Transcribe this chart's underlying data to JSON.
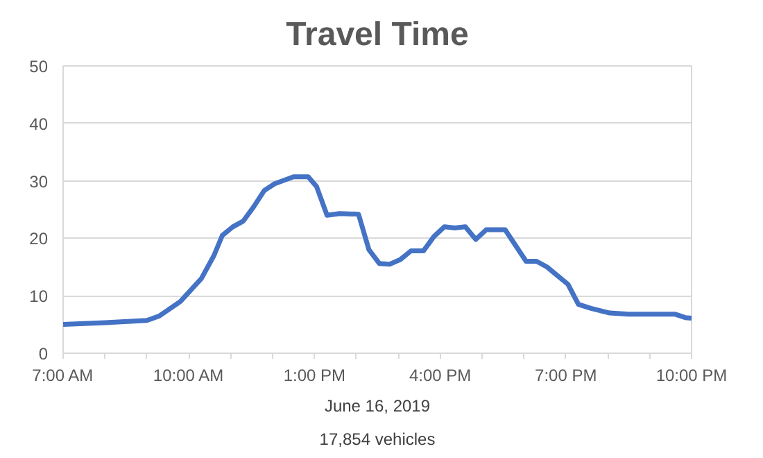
{
  "chart_data": {
    "type": "line",
    "title": "Travel Time",
    "xlabel": "June 16, 2019",
    "annotations": [
      "17,854 vehicles"
    ],
    "x": [
      7,
      8,
      9,
      9.3,
      9.8,
      10.3,
      10.6,
      10.8,
      11.05,
      11.3,
      11.55,
      11.8,
      12.05,
      12.5,
      12.85,
      13.05,
      13.3,
      13.6,
      14.05,
      14.3,
      14.55,
      14.8,
      15.05,
      15.3,
      15.6,
      15.85,
      16.1,
      16.35,
      16.6,
      16.85,
      17.1,
      17.55,
      18.05,
      18.3,
      18.55,
      18.8,
      19.05,
      19.3,
      19.6,
      20.05,
      20.5,
      21,
      21.6,
      21.85,
      22
    ],
    "series": [
      {
        "color": "#4472c4",
        "values": [
          5,
          5.3,
          5.7,
          6.5,
          9,
          13,
          17,
          20.5,
          22,
          23,
          25.5,
          28.3,
          29.5,
          30.7,
          30.7,
          29,
          24,
          24.3,
          24.2,
          18,
          15.6,
          15.5,
          16.3,
          17.8,
          17.8,
          20.3,
          22,
          21.8,
          22,
          19.8,
          21.5,
          21.5,
          16,
          16,
          15,
          13.5,
          12,
          8.5,
          7.8,
          7,
          6.8,
          6.8,
          6.8,
          6.2,
          6.1
        ]
      }
    ],
    "xlim": [
      7,
      22
    ],
    "xticks": [
      {
        "value": 7,
        "label": "7:00 AM"
      },
      {
        "value": 8,
        "label": null
      },
      {
        "value": 9,
        "label": null
      },
      {
        "value": 10,
        "label": "10:00 AM"
      },
      {
        "value": 11,
        "label": null
      },
      {
        "value": 12,
        "label": null
      },
      {
        "value": 13,
        "label": "1:00 PM"
      },
      {
        "value": 14,
        "label": null
      },
      {
        "value": 15,
        "label": null
      },
      {
        "value": 16,
        "label": "4:00 PM"
      },
      {
        "value": 17,
        "label": null
      },
      {
        "value": 18,
        "label": null
      },
      {
        "value": 19,
        "label": "7:00 PM"
      },
      {
        "value": 20,
        "label": null
      },
      {
        "value": 21,
        "label": null
      },
      {
        "value": 22,
        "label": "10:00 PM"
      }
    ],
    "ylim": [
      0,
      50
    ],
    "yticks": [
      0,
      10,
      20,
      30,
      40,
      50
    ],
    "grid": "y",
    "marker": "none",
    "line_style": "solid"
  }
}
